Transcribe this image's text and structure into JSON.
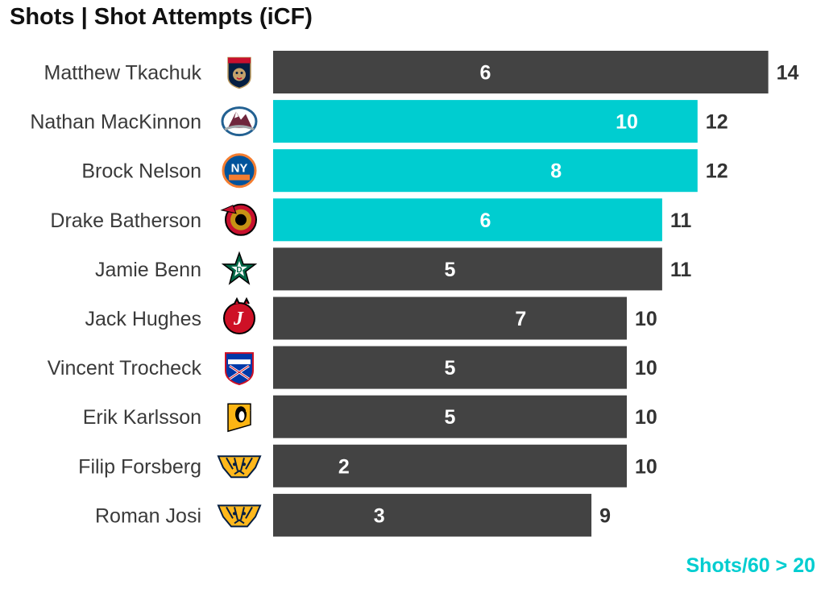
{
  "title": "Shots | Shot Attempts (iCF)",
  "footnote": "Shots/60 > 20",
  "colors": {
    "highlight": "#00CDD0",
    "default": "#434343",
    "bar_label": "#ffffff",
    "total_label": "#333333",
    "player_label": "#3a3a3a",
    "footnote": "#00CDD0"
  },
  "chart_data": {
    "type": "bar",
    "orientation": "horizontal",
    "title": "Shots | Shot Attempts (iCF)",
    "categories": [
      "Matthew Tkachuk",
      "Nathan MacKinnon",
      "Brock Nelson",
      "Drake Batherson",
      "Jamie Benn",
      "Jack Hughes",
      "Vincent Trocheck",
      "Erik Karlsson",
      "Filip Forsberg",
      "Roman Josi"
    ],
    "series": [
      {
        "name": "Shots",
        "values": [
          6,
          10,
          8,
          6,
          5,
          7,
          5,
          5,
          2,
          3
        ]
      },
      {
        "name": "Shot Attempts (iCF)",
        "values": [
          14,
          12,
          12,
          11,
          11,
          10,
          10,
          10,
          10,
          9
        ]
      }
    ],
    "highlighted": [
      false,
      true,
      true,
      true,
      false,
      false,
      false,
      false,
      false,
      false
    ],
    "team_icons": [
      "florida-panthers-logo-icon",
      "colorado-avalanche-logo-icon",
      "new-york-islanders-logo-icon",
      "ottawa-senators-logo-icon",
      "dallas-stars-logo-icon",
      "new-jersey-devils-logo-icon",
      "new-york-rangers-logo-icon",
      "pittsburgh-penguins-logo-icon",
      "nashville-predators-logo-icon",
      "nashville-predators-logo-icon"
    ],
    "xlim": [
      0,
      14
    ],
    "grid": false,
    "legend": "none"
  }
}
